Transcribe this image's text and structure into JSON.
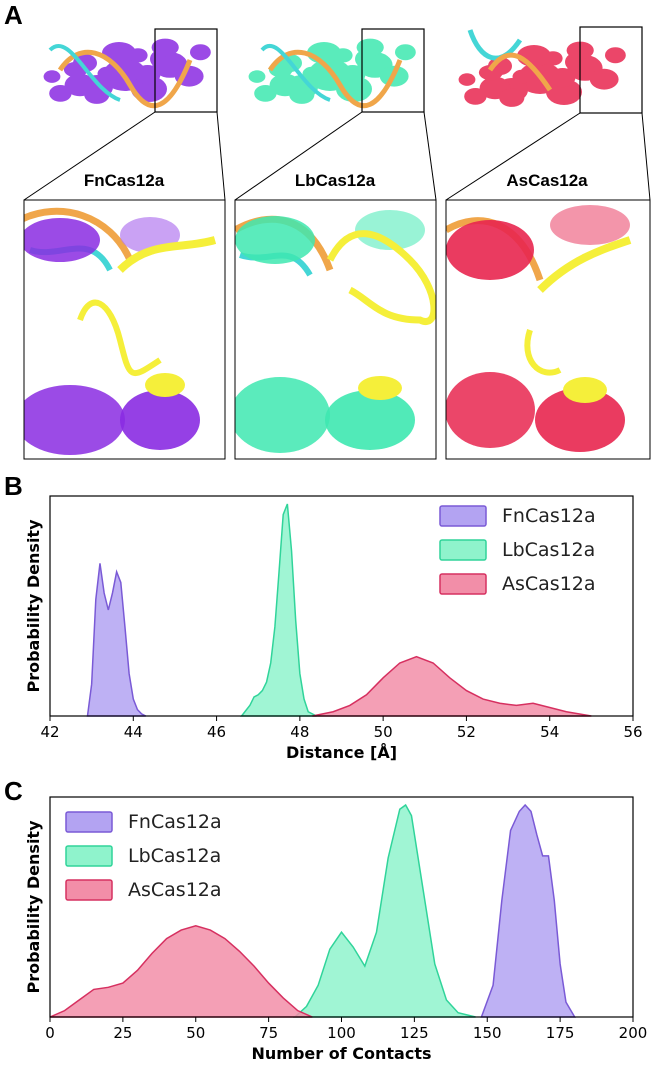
{
  "panels": {
    "a": {
      "letter": "A",
      "proteins": [
        {
          "name": "FnCas12a",
          "color": "#8a2be2"
        },
        {
          "name": "LbCas12a",
          "color": "#3ee8b0"
        },
        {
          "name": "AsCas12a",
          "color": "#e8264f"
        }
      ],
      "highlight_color": "#f5ef3a",
      "nucleic_colors": [
        "#f0a64a",
        "#44d6d6"
      ]
    },
    "b": {
      "letter": "B"
    },
    "c": {
      "letter": "C"
    }
  },
  "chart_data": [
    {
      "type": "area",
      "xlabel": "Distance [Å]",
      "ylabel": "Probability Density",
      "xlim": [
        42,
        56
      ],
      "xticks": [
        42,
        44,
        46,
        48,
        50,
        52,
        54,
        56
      ],
      "legend_position": "top-right",
      "series": [
        {
          "name": "FnCas12a",
          "fill": "#b3a3f2",
          "stroke": "#7a5ad6",
          "x": [
            42.9,
            43.0,
            43.1,
            43.2,
            43.3,
            43.4,
            43.5,
            43.6,
            43.7,
            43.8,
            43.9,
            44.0,
            44.1,
            44.2,
            44.3
          ],
          "y": [
            0.0,
            0.15,
            0.55,
            0.72,
            0.58,
            0.5,
            0.58,
            0.68,
            0.63,
            0.42,
            0.2,
            0.08,
            0.03,
            0.01,
            0.0
          ]
        },
        {
          "name": "LbCas12a",
          "fill": "#8ff3cc",
          "stroke": "#30d49a",
          "x": [
            46.6,
            46.8,
            46.9,
            47.0,
            47.1,
            47.2,
            47.3,
            47.4,
            47.5,
            47.6,
            47.7,
            47.8,
            47.9,
            48.0,
            48.1,
            48.2,
            48.4
          ],
          "y": [
            0.0,
            0.05,
            0.09,
            0.1,
            0.12,
            0.16,
            0.25,
            0.42,
            0.68,
            0.95,
            1.0,
            0.78,
            0.45,
            0.2,
            0.08,
            0.02,
            0.0
          ]
        },
        {
          "name": "AsCas12a",
          "fill": "#f28ea8",
          "stroke": "#d63060",
          "x": [
            48.3,
            48.8,
            49.2,
            49.6,
            50.0,
            50.4,
            50.8,
            51.2,
            51.6,
            52.0,
            52.4,
            52.8,
            53.2,
            53.6,
            54.0,
            54.4,
            55.0
          ],
          "y": [
            0.0,
            0.02,
            0.05,
            0.1,
            0.18,
            0.25,
            0.28,
            0.25,
            0.18,
            0.12,
            0.08,
            0.06,
            0.05,
            0.06,
            0.04,
            0.02,
            0.0
          ]
        }
      ]
    },
    {
      "type": "area",
      "xlabel": "Number of Contacts",
      "ylabel": "Probability Density",
      "xlim": [
        0,
        200
      ],
      "xticks": [
        0,
        25,
        50,
        75,
        100,
        125,
        150,
        175,
        200
      ],
      "legend_position": "top-left",
      "series": [
        {
          "name": "FnCas12a",
          "fill": "#b3a3f2",
          "stroke": "#7a5ad6",
          "x": [
            148,
            152,
            155,
            158,
            161,
            163,
            165,
            167,
            169,
            171,
            173,
            175,
            177,
            180
          ],
          "y": [
            0.0,
            0.15,
            0.55,
            0.88,
            0.97,
            1.0,
            0.97,
            0.86,
            0.76,
            0.76,
            0.55,
            0.25,
            0.07,
            0.0
          ]
        },
        {
          "name": "LbCas12a",
          "fill": "#8ff3cc",
          "stroke": "#30d49a",
          "x": [
            84,
            88,
            92,
            96,
            100,
            104,
            108,
            112,
            116,
            120,
            122,
            124,
            128,
            132,
            136,
            140,
            146
          ],
          "y": [
            0.0,
            0.05,
            0.15,
            0.32,
            0.4,
            0.33,
            0.24,
            0.4,
            0.75,
            0.98,
            1.0,
            0.95,
            0.6,
            0.25,
            0.08,
            0.02,
            0.0
          ]
        },
        {
          "name": "AsCas12a",
          "fill": "#f28ea8",
          "stroke": "#d63060",
          "x": [
            0,
            5,
            10,
            15,
            20,
            25,
            30,
            35,
            40,
            45,
            50,
            55,
            60,
            65,
            70,
            75,
            80,
            85,
            90
          ],
          "y": [
            0.0,
            0.03,
            0.08,
            0.13,
            0.14,
            0.16,
            0.22,
            0.3,
            0.37,
            0.41,
            0.43,
            0.41,
            0.37,
            0.31,
            0.24,
            0.16,
            0.09,
            0.03,
            0.0
          ]
        }
      ]
    }
  ]
}
